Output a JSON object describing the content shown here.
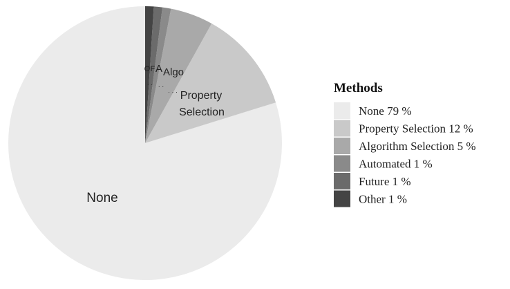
{
  "chart_data": {
    "type": "pie",
    "title": "",
    "legend": {
      "title": "Methods",
      "placement": "right",
      "entries": [
        "None 79 %",
        "Property Selection 12 %",
        "Algorithm Selection 5 %",
        "Automated 1 %",
        "Future 1 %",
        "Other 1 %"
      ]
    },
    "slices": [
      {
        "label": "None",
        "value": 79,
        "color": "#ebebeb"
      },
      {
        "label": "Property Selection",
        "value": 12,
        "color": "#c9c9c9"
      },
      {
        "label": "Algorithm Selection",
        "value": 5,
        "color": "#a9a9a9"
      },
      {
        "label": "Automated",
        "value": 1,
        "color": "#8a8a8a"
      },
      {
        "label": "Future",
        "value": 1,
        "color": "#6b6b6b"
      },
      {
        "label": "Other",
        "value": 1,
        "color": "#444444"
      }
    ],
    "slice_labels": {
      "none": "None",
      "property_line1": "Property",
      "property_line2": "Selection",
      "algo": "Algo",
      "automated": "A",
      "future": "F",
      "other": "O",
      "dots_1": "· ·",
      "dots_2": "· ·",
      "dots_3": "· · ·"
    }
  }
}
